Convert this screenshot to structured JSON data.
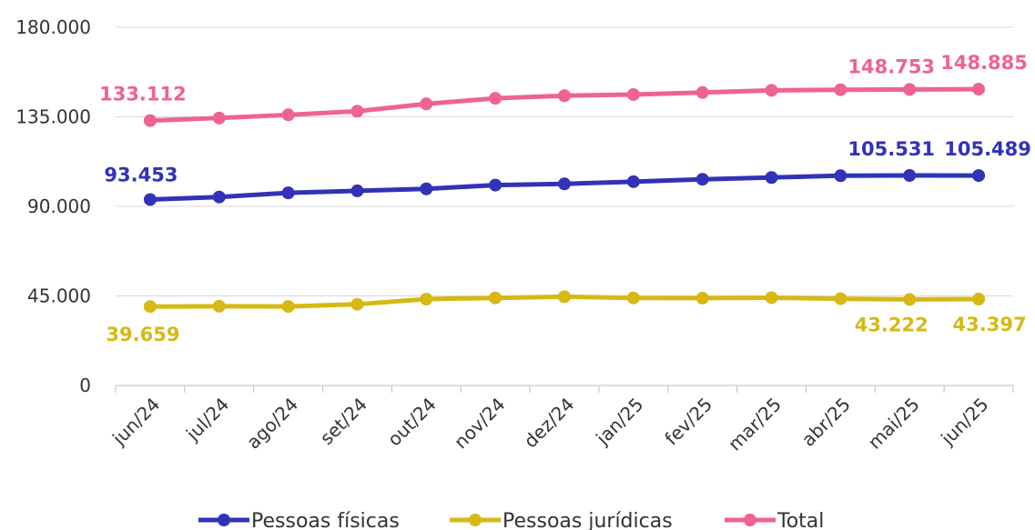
{
  "chart_data": {
    "type": "line",
    "categories": [
      "jun/24",
      "jul/24",
      "ago/24",
      "set/24",
      "out/24",
      "nov/24",
      "dez/24",
      "jan/25",
      "fev/25",
      "mar/25",
      "abr/25",
      "mai/25",
      "jun/25"
    ],
    "ylim": [
      0,
      180000
    ],
    "yticks": [
      0,
      45000,
      90000,
      135000,
      180000
    ],
    "ytick_labels": [
      "0",
      "45.000",
      "90.000",
      "135.000",
      "180.000"
    ],
    "grid": "horizontal",
    "legend_position": "bottom",
    "series": [
      {
        "name": "Pessoas físicas",
        "color": "#3232b8",
        "values": [
          93453,
          94700,
          96800,
          97800,
          98800,
          100700,
          101300,
          102400,
          103600,
          104500,
          105400,
          105531,
          105489
        ],
        "labels": [
          {
            "index": 0,
            "text": "93.453"
          },
          {
            "index": 11,
            "text": "105.531"
          },
          {
            "index": 12,
            "text": "105.489"
          }
        ]
      },
      {
        "name": "Pessoas jurídicas",
        "color": "#d6b914",
        "values": [
          39659,
          39800,
          39700,
          40800,
          43400,
          44000,
          44600,
          44000,
          43900,
          44100,
          43600,
          43222,
          43397
        ],
        "labels": [
          {
            "index": 0,
            "text": "39.659"
          },
          {
            "index": 11,
            "text": "43.222"
          },
          {
            "index": 12,
            "text": "43.397"
          }
        ]
      },
      {
        "name": "Total",
        "color": "#ef6391",
        "values": [
          133112,
          134400,
          136000,
          137800,
          141500,
          144300,
          145600,
          146200,
          147200,
          148300,
          148600,
          148753,
          148885
        ],
        "labels": [
          {
            "index": 0,
            "text": "133.112"
          },
          {
            "index": 11,
            "text": "148.753"
          },
          {
            "index": 12,
            "text": "148.885"
          }
        ]
      }
    ]
  }
}
